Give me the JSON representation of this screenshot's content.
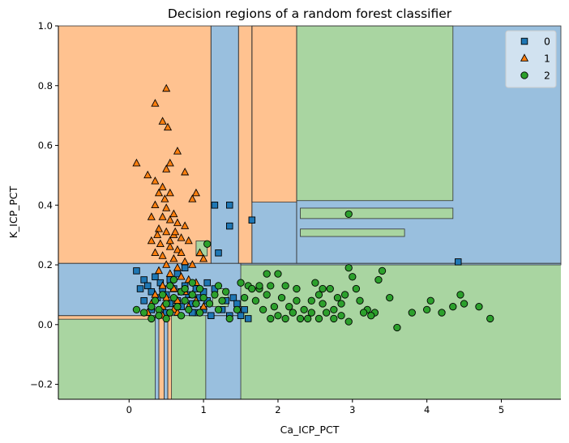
{
  "chart_data": {
    "type": "scatter",
    "title": "Decision regions of a random forest classifier",
    "xlabel": "Ca_ICP_PCT",
    "ylabel": "K_ICP_PCT",
    "xlim": [
      -0.95,
      5.8
    ],
    "ylim": [
      -0.25,
      1.0
    ],
    "xticks": [
      0,
      1,
      2,
      3,
      4,
      5
    ],
    "yticks": [
      -0.2,
      0.0,
      0.2,
      0.4,
      0.6,
      0.8,
      1.0
    ],
    "xtick_labels": [
      "0",
      "1",
      "2",
      "3",
      "4",
      "5"
    ],
    "ytick_labels": [
      "−0.2",
      "0.0",
      "0.2",
      "0.4",
      "0.6",
      "0.8",
      "1.0"
    ],
    "grid": false,
    "legend_position": "top-right",
    "colors": {
      "0": "#1f77b4",
      "1": "#ff7f0e",
      "2": "#2ca02c"
    },
    "region_colors": {
      "0": "#99bfde",
      "1": "#ffc290",
      "2": "#a9d5a1"
    },
    "regions": [
      {
        "class": "2",
        "x": [
          -0.95,
          5.8
        ],
        "y": [
          -0.25,
          1.0
        ]
      },
      {
        "class": "1",
        "x": [
          -0.95,
          1.1
        ],
        "y": [
          0.205,
          1.0
        ]
      },
      {
        "class": "0",
        "x": [
          1.1,
          1.47
        ],
        "y": [
          0.205,
          1.0
        ]
      },
      {
        "class": "1",
        "x": [
          1.47,
          1.65
        ],
        "y": [
          0.205,
          1.0
        ]
      },
      {
        "class": "0",
        "x": [
          1.65,
          2.25
        ],
        "y": [
          0.205,
          1.0
        ]
      },
      {
        "class": "1",
        "x": [
          1.65,
          2.25
        ],
        "y": [
          0.41,
          1.0
        ]
      },
      {
        "class": "0",
        "x": [
          2.25,
          5.8
        ],
        "y": [
          0.205,
          1.0
        ]
      },
      {
        "class": "2",
        "x": [
          2.25,
          4.35
        ],
        "y": [
          0.415,
          1.0
        ]
      },
      {
        "class": "2",
        "x": [
          2.3,
          4.35
        ],
        "y": [
          0.355,
          0.39
        ]
      },
      {
        "class": "2",
        "x": [
          2.3,
          3.7
        ],
        "y": [
          0.295,
          0.32
        ]
      },
      {
        "class": "0",
        "x": [
          -0.95,
          1.5
        ],
        "y": [
          0.03,
          0.205
        ]
      },
      {
        "class": "0",
        "x": [
          1.5,
          5.8
        ],
        "y": [
          0.2,
          0.205
        ]
      },
      {
        "class": "1",
        "x": [
          -0.95,
          0.35
        ],
        "y": [
          0.018,
          0.03
        ]
      },
      {
        "class": "0",
        "x": [
          0.35,
          0.4
        ],
        "y": [
          -0.25,
          0.03
        ]
      },
      {
        "class": "1",
        "x": [
          0.4,
          0.47
        ],
        "y": [
          -0.25,
          0.03
        ]
      },
      {
        "class": "0",
        "x": [
          0.47,
          0.52
        ],
        "y": [
          -0.25,
          0.03
        ]
      },
      {
        "class": "1",
        "x": [
          0.52,
          0.57
        ],
        "y": [
          -0.25,
          0.03
        ]
      },
      {
        "class": "0",
        "x": [
          1.03,
          1.5
        ],
        "y": [
          -0.25,
          0.03
        ]
      },
      {
        "class": "2",
        "x": [
          1.12,
          1.33
        ],
        "y": [
          0.06,
          0.12
        ]
      },
      {
        "class": "2",
        "x": [
          0.9,
          1.05
        ],
        "y": [
          0.23,
          0.28
        ]
      }
    ],
    "series": [
      {
        "name": "0",
        "marker": "square",
        "points": [
          [
            0.1,
            0.18
          ],
          [
            0.2,
            0.15
          ],
          [
            0.25,
            0.13
          ],
          [
            0.3,
            0.11
          ],
          [
            0.35,
            0.16
          ],
          [
            0.38,
            0.09
          ],
          [
            0.42,
            0.14
          ],
          [
            0.45,
            0.12
          ],
          [
            0.5,
            0.1
          ],
          [
            0.55,
            0.15
          ],
          [
            0.6,
            0.12
          ],
          [
            0.65,
            0.08
          ],
          [
            0.7,
            0.11
          ],
          [
            0.75,
            0.13
          ],
          [
            0.8,
            0.1
          ],
          [
            0.85,
            0.07
          ],
          [
            0.9,
            0.12
          ],
          [
            0.95,
            0.09
          ],
          [
            1.0,
            0.11
          ],
          [
            1.05,
            0.08
          ],
          [
            1.15,
            0.4
          ],
          [
            1.35,
            0.4
          ],
          [
            1.35,
            0.33
          ],
          [
            1.65,
            0.35
          ],
          [
            1.2,
            0.24
          ],
          [
            1.15,
            0.12
          ],
          [
            1.3,
            0.08
          ],
          [
            1.4,
            0.09
          ],
          [
            1.55,
            0.05
          ],
          [
            1.6,
            0.02
          ],
          [
            1.45,
            0.07
          ],
          [
            1.0,
            0.05
          ],
          [
            1.1,
            0.03
          ],
          [
            1.25,
            0.05
          ],
          [
            1.35,
            0.03
          ],
          [
            0.2,
            0.08
          ],
          [
            0.3,
            0.05
          ],
          [
            0.5,
            0.04
          ],
          [
            0.7,
            0.06
          ],
          [
            0.9,
            0.04
          ],
          [
            0.65,
            0.17
          ],
          [
            0.75,
            0.19
          ],
          [
            4.42,
            0.21
          ],
          [
            0.15,
            0.12
          ],
          [
            0.55,
            0.07
          ],
          [
            1.5,
            0.03
          ],
          [
            1.05,
            0.14
          ],
          [
            0.85,
            0.04
          ]
        ]
      },
      {
        "name": "1",
        "marker": "triangle",
        "points": [
          [
            0.5,
            0.79
          ],
          [
            0.35,
            0.74
          ],
          [
            0.45,
            0.68
          ],
          [
            0.52,
            0.66
          ],
          [
            0.65,
            0.58
          ],
          [
            0.1,
            0.54
          ],
          [
            0.25,
            0.5
          ],
          [
            0.35,
            0.48
          ],
          [
            0.5,
            0.52
          ],
          [
            0.55,
            0.54
          ],
          [
            0.45,
            0.46
          ],
          [
            0.55,
            0.44
          ],
          [
            0.4,
            0.44
          ],
          [
            0.48,
            0.42
          ],
          [
            0.75,
            0.51
          ],
          [
            0.9,
            0.44
          ],
          [
            0.85,
            0.42
          ],
          [
            0.35,
            0.4
          ],
          [
            0.5,
            0.39
          ],
          [
            0.6,
            0.37
          ],
          [
            0.3,
            0.36
          ],
          [
            0.45,
            0.36
          ],
          [
            0.55,
            0.35
          ],
          [
            0.65,
            0.34
          ],
          [
            0.75,
            0.33
          ],
          [
            0.4,
            0.32
          ],
          [
            0.5,
            0.31
          ],
          [
            0.6,
            0.3
          ],
          [
            0.7,
            0.29
          ],
          [
            0.8,
            0.28
          ],
          [
            0.3,
            0.28
          ],
          [
            0.42,
            0.27
          ],
          [
            0.55,
            0.26
          ],
          [
            0.65,
            0.25
          ],
          [
            0.35,
            0.24
          ],
          [
            0.45,
            0.23
          ],
          [
            0.6,
            0.22
          ],
          [
            0.75,
            0.21
          ],
          [
            0.85,
            0.2
          ],
          [
            0.5,
            0.2
          ],
          [
            0.65,
            0.19
          ],
          [
            0.4,
            0.18
          ],
          [
            0.55,
            0.17
          ],
          [
            0.7,
            0.16
          ],
          [
            0.8,
            0.15
          ],
          [
            0.9,
            0.14
          ],
          [
            0.45,
            0.13
          ],
          [
            0.6,
            0.12
          ],
          [
            0.75,
            0.11
          ],
          [
            0.85,
            0.1
          ],
          [
            0.35,
            0.1
          ],
          [
            0.5,
            0.09
          ],
          [
            0.65,
            0.08
          ],
          [
            0.3,
            0.07
          ],
          [
            0.45,
            0.06
          ],
          [
            0.6,
            0.05
          ],
          [
            0.8,
            0.06
          ],
          [
            0.9,
            0.08
          ],
          [
            1.0,
            0.06
          ],
          [
            0.25,
            0.04
          ],
          [
            0.45,
            0.03
          ],
          [
            0.65,
            0.04
          ],
          [
            0.95,
            0.24
          ],
          [
            1.0,
            0.22
          ],
          [
            0.55,
            0.28
          ],
          [
            0.62,
            0.31
          ],
          [
            0.38,
            0.3
          ],
          [
            0.7,
            0.24
          ]
        ]
      },
      {
        "name": "2",
        "marker": "circle",
        "points": [
          [
            2.95,
            0.37
          ],
          [
            0.1,
            0.05
          ],
          [
            0.2,
            0.04
          ],
          [
            0.3,
            0.06
          ],
          [
            0.35,
            0.08
          ],
          [
            0.4,
            0.05
          ],
          [
            0.45,
            0.1
          ],
          [
            0.5,
            0.07
          ],
          [
            0.55,
            0.04
          ],
          [
            0.6,
            0.09
          ],
          [
            0.65,
            0.06
          ],
          [
            0.7,
            0.11
          ],
          [
            0.75,
            0.08
          ],
          [
            0.8,
            0.05
          ],
          [
            0.85,
            0.1
          ],
          [
            0.9,
            0.07
          ],
          [
            0.95,
            0.12
          ],
          [
            1.0,
            0.09
          ],
          [
            1.05,
            0.27
          ],
          [
            1.08,
            0.07
          ],
          [
            1.15,
            0.1
          ],
          [
            1.2,
            0.05
          ],
          [
            1.25,
            0.08
          ],
          [
            1.3,
            0.11
          ],
          [
            1.45,
            0.05
          ],
          [
            1.55,
            0.09
          ],
          [
            1.6,
            0.13
          ],
          [
            1.65,
            0.12
          ],
          [
            1.7,
            0.08
          ],
          [
            1.75,
            0.12
          ],
          [
            1.8,
            0.05
          ],
          [
            1.85,
            0.1
          ],
          [
            1.9,
            0.13
          ],
          [
            1.95,
            0.06
          ],
          [
            2.0,
            0.03
          ],
          [
            2.05,
            0.09
          ],
          [
            2.1,
            0.13
          ],
          [
            2.15,
            0.06
          ],
          [
            2.2,
            0.04
          ],
          [
            2.25,
            0.08
          ],
          [
            2.3,
            0.02
          ],
          [
            2.35,
            0.05
          ],
          [
            2.4,
            0.02
          ],
          [
            2.45,
            0.04
          ],
          [
            2.5,
            0.14
          ],
          [
            2.55,
            0.1
          ],
          [
            2.6,
            0.07
          ],
          [
            2.65,
            0.04
          ],
          [
            2.7,
            0.12
          ],
          [
            2.75,
            0.05
          ],
          [
            2.8,
            0.09
          ],
          [
            2.85,
            0.03
          ],
          [
            2.9,
            0.1
          ],
          [
            2.95,
            0.19
          ],
          [
            3.0,
            0.16
          ],
          [
            3.05,
            0.12
          ],
          [
            3.1,
            0.08
          ],
          [
            3.2,
            0.05
          ],
          [
            3.3,
            0.04
          ],
          [
            3.35,
            0.15
          ],
          [
            3.4,
            0.18
          ],
          [
            3.5,
            0.09
          ],
          [
            3.6,
            -0.01
          ],
          [
            3.8,
            0.04
          ],
          [
            4.0,
            0.05
          ],
          [
            4.05,
            0.08
          ],
          [
            4.2,
            0.04
          ],
          [
            4.35,
            0.06
          ],
          [
            4.45,
            0.1
          ],
          [
            4.5,
            0.07
          ],
          [
            4.7,
            0.06
          ],
          [
            4.85,
            0.02
          ],
          [
            2.0,
            0.17
          ],
          [
            1.85,
            0.17
          ],
          [
            1.75,
            0.13
          ],
          [
            2.25,
            0.12
          ],
          [
            2.55,
            0.02
          ],
          [
            2.75,
            0.02
          ],
          [
            2.95,
            0.01
          ],
          [
            0.4,
            0.03
          ],
          [
            0.5,
            0.02
          ],
          [
            0.7,
            0.03
          ],
          [
            0.95,
            0.04
          ],
          [
            1.35,
            0.02
          ],
          [
            1.5,
            0.14
          ],
          [
            1.9,
            0.02
          ],
          [
            2.1,
            0.02
          ],
          [
            2.6,
            0.12
          ],
          [
            3.25,
            0.03
          ],
          [
            0.6,
            0.15
          ],
          [
            0.75,
            0.12
          ],
          [
            0.85,
            0.14
          ],
          [
            0.3,
            0.02
          ],
          [
            0.55,
            0.13
          ],
          [
            1.2,
            0.13
          ],
          [
            2.45,
            0.08
          ],
          [
            2.85,
            0.07
          ],
          [
            3.15,
            0.04
          ]
        ]
      }
    ]
  }
}
